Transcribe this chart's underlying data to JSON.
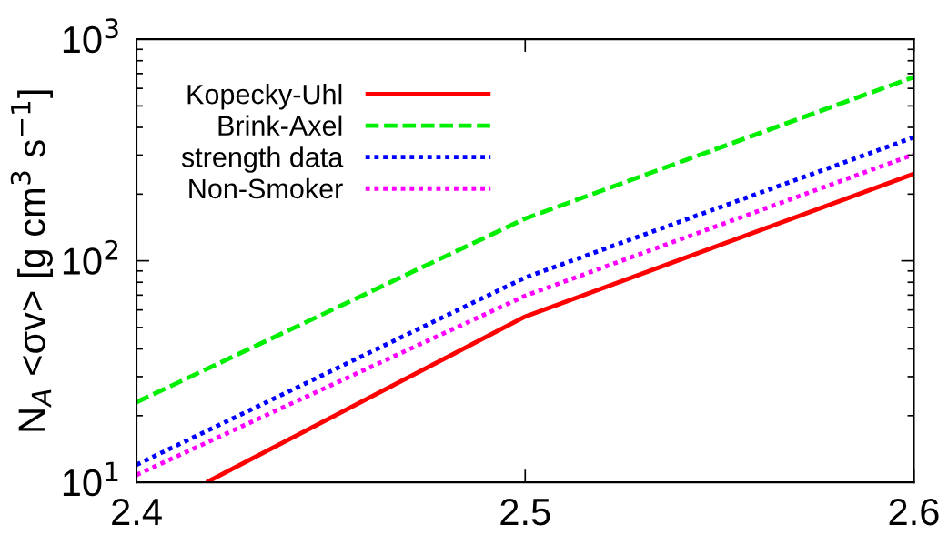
{
  "chart_data": {
    "type": "line",
    "ylabel": "N$_{A}$ <σv> [g cm$^{3}$ s$^{−1}$]",
    "log": "y",
    "xlim": [
      2.4,
      2.6
    ],
    "xticks": [
      2.4,
      2.5,
      2.6
    ],
    "ylim": [
      10,
      1000
    ],
    "yticks": [
      {
        "value": 10,
        "label": "10$^{1}$"
      },
      {
        "value": 100,
        "label": "10$^{2}$"
      },
      {
        "value": 1000,
        "label": "10$^{3}$"
      }
    ],
    "grid": false,
    "legend": "top left",
    "series": [
      {
        "name": "Kopecky-Uhl",
        "color": "#ff0000",
        "line_style": "solid",
        "x": [
          2.418,
          2.5,
          2.6
        ],
        "values": [
          10,
          56,
          247
        ]
      },
      {
        "name": "Brink-Axel",
        "color": "#00ee00",
        "line_style": "dashed",
        "x": [
          2.4,
          2.5,
          2.6
        ],
        "values": [
          23,
          155,
          676
        ]
      },
      {
        "name": "strength data",
        "color": "#0000ff",
        "line_style": "dotted",
        "x": [
          2.4,
          2.5,
          2.6
        ],
        "values": [
          12,
          84,
          361
        ]
      },
      {
        "name": "Non-Smoker",
        "color": "#ff00ff",
        "line_style": "dotted",
        "x": [
          2.4,
          2.5,
          2.6
        ],
        "values": [
          10.8,
          69.5,
          302
        ]
      }
    ]
  }
}
